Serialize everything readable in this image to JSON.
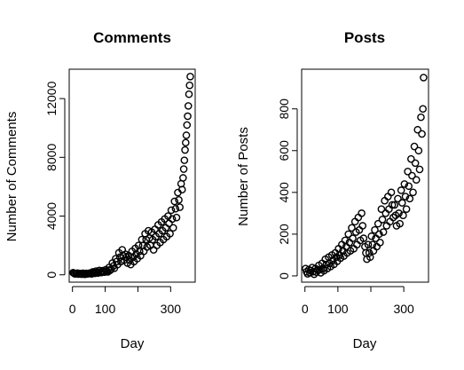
{
  "chart_data": [
    {
      "type": "scatter",
      "title": "Comments",
      "xlabel": "Day",
      "ylabel": "Number of Comments",
      "xlim": [
        -10,
        375
      ],
      "ylim": [
        -500,
        14000
      ],
      "xticks": [
        0,
        100,
        300
      ],
      "xtick_labels": [
        "0",
        "100",
        "300"
      ],
      "yticks": [
        0,
        4000,
        8000,
        12000
      ],
      "ytick_labels": [
        "0",
        "4000",
        "8000",
        "12000"
      ],
      "x": [
        2,
        5,
        8,
        12,
        15,
        18,
        22,
        25,
        28,
        32,
        35,
        38,
        42,
        45,
        48,
        52,
        55,
        58,
        62,
        65,
        68,
        72,
        75,
        78,
        82,
        85,
        88,
        92,
        95,
        98,
        102,
        105,
        108,
        112,
        115,
        118,
        122,
        125,
        128,
        132,
        135,
        138,
        142,
        145,
        148,
        152,
        155,
        158,
        162,
        165,
        168,
        172,
        175,
        178,
        182,
        185,
        188,
        192,
        195,
        198,
        202,
        205,
        208,
        212,
        215,
        218,
        222,
        225,
        228,
        232,
        235,
        238,
        242,
        245,
        248,
        252,
        255,
        258,
        262,
        265,
        268,
        272,
        275,
        278,
        282,
        285,
        288,
        292,
        295,
        298,
        302,
        305,
        308,
        312,
        315,
        318,
        322,
        325,
        328,
        332,
        335,
        338,
        340,
        342,
        344,
        346,
        348,
        350,
        352,
        354,
        356,
        358,
        360
      ],
      "y": [
        150,
        100,
        60,
        80,
        120,
        50,
        90,
        60,
        40,
        110,
        70,
        30,
        100,
        60,
        80,
        120,
        90,
        60,
        200,
        150,
        100,
        250,
        180,
        120,
        300,
        200,
        150,
        280,
        220,
        180,
        350,
        260,
        200,
        500,
        300,
        380,
        800,
        600,
        450,
        1100,
        900,
        700,
        1500,
        1200,
        900,
        1700,
        1300,
        1000,
        1400,
        1200,
        800,
        1300,
        1000,
        700,
        1600,
        1200,
        900,
        1800,
        1400,
        1100,
        2000,
        1600,
        1300,
        2400,
        2000,
        1600,
        2800,
        2400,
        1900,
        3000,
        2500,
        2000,
        2900,
        2400,
        1700,
        3100,
        2600,
        2000,
        3400,
        2800,
        2200,
        3600,
        3000,
        2400,
        3800,
        3200,
        2600,
        4000,
        3500,
        2800,
        4400,
        3800,
        3200,
        5000,
        4500,
        3900,
        5600,
        5100,
        4600,
        6200,
        5800,
        6600,
        7200,
        7800,
        8500,
        9000,
        9500,
        10200,
        10800,
        11500,
        12300,
        12900,
        13500
      ]
    },
    {
      "type": "scatter",
      "title": "Posts",
      "xlabel": "Day",
      "ylabel": "Number of Posts",
      "xlim": [
        -10,
        375
      ],
      "ylim": [
        -30,
        990
      ],
      "xticks": [
        0,
        100,
        300
      ],
      "xtick_labels": [
        "0",
        "100",
        "300"
      ],
      "yticks": [
        0,
        200,
        400,
        600,
        800
      ],
      "ytick_labels": [
        "0",
        "200",
        "400",
        "600",
        "800"
      ],
      "x": [
        2,
        5,
        8,
        12,
        15,
        18,
        22,
        25,
        28,
        32,
        35,
        38,
        42,
        45,
        48,
        52,
        55,
        58,
        62,
        65,
        68,
        72,
        75,
        78,
        82,
        85,
        88,
        92,
        95,
        98,
        102,
        105,
        108,
        112,
        115,
        118,
        122,
        125,
        128,
        132,
        135,
        138,
        142,
        145,
        148,
        152,
        155,
        158,
        162,
        165,
        168,
        172,
        175,
        178,
        182,
        185,
        188,
        192,
        195,
        198,
        202,
        205,
        208,
        212,
        215,
        218,
        222,
        225,
        228,
        232,
        235,
        238,
        242,
        245,
        248,
        252,
        255,
        258,
        262,
        265,
        268,
        272,
        275,
        278,
        282,
        285,
        288,
        292,
        295,
        298,
        302,
        305,
        308,
        312,
        315,
        318,
        322,
        325,
        328,
        332,
        335,
        338,
        342,
        345,
        348,
        352,
        355,
        358,
        360
      ],
      "y": [
        35,
        20,
        10,
        30,
        15,
        25,
        40,
        20,
        8,
        35,
        18,
        28,
        50,
        30,
        15,
        60,
        35,
        25,
        80,
        55,
        35,
        90,
        60,
        45,
        100,
        75,
        55,
        110,
        90,
        70,
        130,
        100,
        85,
        150,
        120,
        95,
        170,
        140,
        110,
        200,
        160,
        120,
        230,
        180,
        130,
        260,
        210,
        150,
        280,
        220,
        170,
        300,
        240,
        180,
        140,
        110,
        80,
        150,
        110,
        90,
        190,
        150,
        120,
        220,
        180,
        140,
        250,
        200,
        160,
        320,
        270,
        210,
        360,
        300,
        240,
        380,
        320,
        260,
        400,
        340,
        280,
        340,
        290,
        240,
        370,
        300,
        250,
        410,
        350,
        290,
        440,
        380,
        320,
        500,
        430,
        370,
        560,
        480,
        400,
        620,
        540,
        460,
        700,
        600,
        510,
        760,
        680,
        800,
        950
      ]
    }
  ]
}
